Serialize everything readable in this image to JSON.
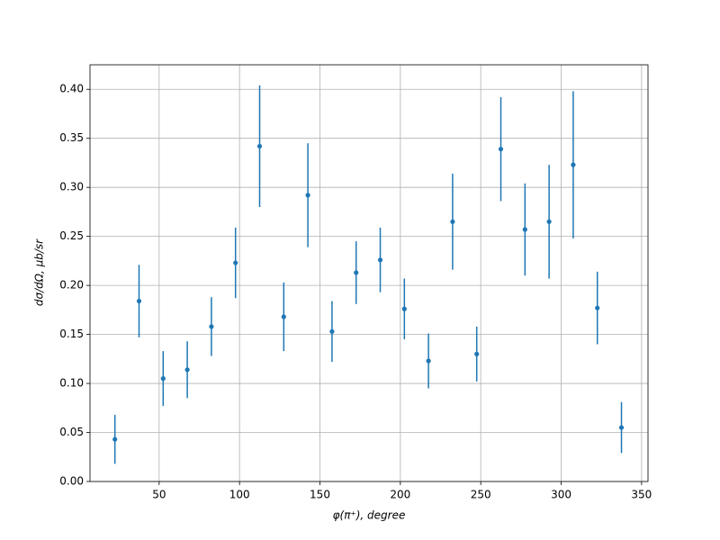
{
  "chart_data": {
    "type": "scatter",
    "xlabel": "φ(π⁺), degree",
    "ylabel": "dσ/dΩ, μb/sr",
    "x": [
      22.5,
      37.5,
      52.5,
      67.5,
      82.5,
      97.5,
      112.5,
      127.5,
      142.5,
      157.5,
      172.5,
      187.5,
      202.5,
      217.5,
      232.5,
      247.5,
      262.5,
      277.5,
      292.5,
      307.5,
      322.5,
      337.5
    ],
    "values": [
      0.043,
      0.184,
      0.105,
      0.114,
      0.158,
      0.223,
      0.342,
      0.168,
      0.292,
      0.153,
      0.213,
      0.226,
      0.176,
      0.123,
      0.265,
      0.13,
      0.339,
      0.257,
      0.265,
      0.323,
      0.177,
      0.055
    ],
    "errors": [
      0.025,
      0.037,
      0.028,
      0.029,
      0.03,
      0.036,
      0.062,
      0.035,
      0.053,
      0.031,
      0.032,
      0.033,
      0.031,
      0.028,
      0.049,
      0.028,
      0.053,
      0.047,
      0.058,
      0.075,
      0.037,
      0.026
    ],
    "color": "#1f77b4",
    "xlim": [
      7,
      354
    ],
    "ylim": [
      0,
      0.425
    ],
    "xticks": [
      50,
      100,
      150,
      200,
      250,
      300,
      350
    ],
    "yticks": [
      {
        "value": 0,
        "label": "0.00"
      },
      {
        "value": 0.05,
        "label": "0.05"
      },
      {
        "value": 0.1,
        "label": "0.10"
      },
      {
        "value": 0.15,
        "label": "0.15"
      },
      {
        "value": 0.2,
        "label": "0.20"
      },
      {
        "value": 0.25,
        "label": "0.25"
      },
      {
        "value": 0.3,
        "label": "0.30"
      },
      {
        "value": 0.35,
        "label": "0.35"
      },
      {
        "value": 0.4,
        "label": "0.40"
      }
    ],
    "grid": true
  }
}
